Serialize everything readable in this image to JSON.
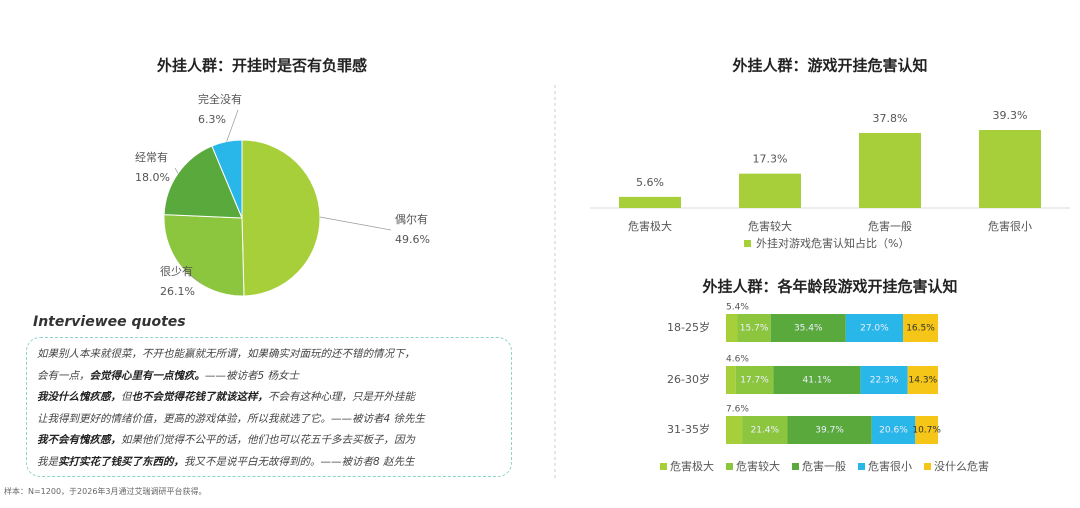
{
  "chart_data": [
    {
      "type": "pie",
      "title": "外挂人群：开挂时是否有负罪感",
      "categories": [
        "偶尔有",
        "很少有",
        "经常有",
        "完全没有"
      ],
      "values": [
        49.6,
        26.1,
        18.0,
        6.3
      ],
      "value_labels": [
        "49.6%",
        "26.1%",
        "18.0%",
        "6.3%"
      ],
      "colors": [
        "#a6cf3a",
        "#8cc63f",
        "#5aa93c",
        "#29b6e8"
      ]
    },
    {
      "type": "bar",
      "title": "外挂人群：游戏开挂危害认知",
      "categories": [
        "危害极大",
        "危害较大",
        "危害一般",
        "危害很小"
      ],
      "series": [
        {
          "name": "外挂对游戏危害认知占比（%）",
          "color": "#a6cf3a",
          "values": [
            5.6,
            17.3,
            37.8,
            39.3
          ],
          "value_labels": [
            "5.6%",
            "17.3%",
            "37.8%",
            "39.3%"
          ]
        }
      ]
    },
    {
      "type": "stacked-bar",
      "orientation": "horizontal",
      "title": "外挂人群：各年龄段游戏开挂危害认知",
      "categories": [
        "18-25岁",
        "26-30岁",
        "31-35岁"
      ],
      "legend_position": "bottom",
      "series": [
        {
          "name": "危害极大",
          "color": "#a6cf3a",
          "values": [
            5.4,
            4.6,
            7.6
          ],
          "value_labels": [
            "5.4%",
            "4.6%",
            "7.6%"
          ]
        },
        {
          "name": "危害较大",
          "color": "#8cc63f",
          "values": [
            15.7,
            17.7,
            21.4
          ],
          "value_labels": [
            "15.7%",
            "17.7%",
            "21.4%"
          ]
        },
        {
          "name": "危害一般",
          "color": "#5aa93c",
          "values": [
            35.4,
            41.1,
            39.7
          ],
          "value_labels": [
            "35.4%",
            "41.1%",
            "39.7%"
          ]
        },
        {
          "name": "危害很小",
          "color": "#29b6e8",
          "values": [
            27.0,
            22.3,
            20.6
          ],
          "value_labels": [
            "27.0%",
            "22.3%",
            "20.6%"
          ]
        },
        {
          "name": "没什么危害",
          "color": "#f5c518",
          "values": [
            16.5,
            14.3,
            10.7
          ],
          "value_labels": [
            "16.5%",
            "14.3%",
            "10.7%"
          ]
        }
      ]
    }
  ],
  "quotes": {
    "title": "Interviewee quotes",
    "lines": [
      [
        {
          "text": "如果别人本来就很菜，不开也能赢就无所谓，如果确实对面玩的还不错的情况下，",
          "bold": false
        }
      ],
      [
        {
          "text": "会有一点，",
          "bold": false
        },
        {
          "text": "会觉得心里有一点愧疚。",
          "bold": true
        },
        {
          "text": "——被访者5 杨女士",
          "bold": false
        }
      ],
      [
        {
          "text": "我没什么愧疚感，",
          "bold": true
        },
        {
          "text": "但",
          "bold": false
        },
        {
          "text": "也不会觉得花钱了就该这样，",
          "bold": true
        },
        {
          "text": "不会有这种心理，只是开外挂能",
          "bold": false
        }
      ],
      [
        {
          "text": "让我得到更好的情绪价值，更高的游戏体验，所以我就选了它。——被访者4 徐先生",
          "bold": false
        }
      ],
      [
        {
          "text": "我不会有愧疚感，",
          "bold": true
        },
        {
          "text": "如果他们觉得不公平的话，他们也可以花五千多去买板子，因为",
          "bold": false
        }
      ],
      [
        {
          "text": "我是",
          "bold": false
        },
        {
          "text": "实打实花了钱买了东西的，",
          "bold": true
        },
        {
          "text": "我又不是说平白无故得到的。——被访者8 赵先生",
          "bold": false
        }
      ]
    ]
  },
  "footnote": "样本：N=1200，于2026年3月通过艾瑞调研平台获得。"
}
